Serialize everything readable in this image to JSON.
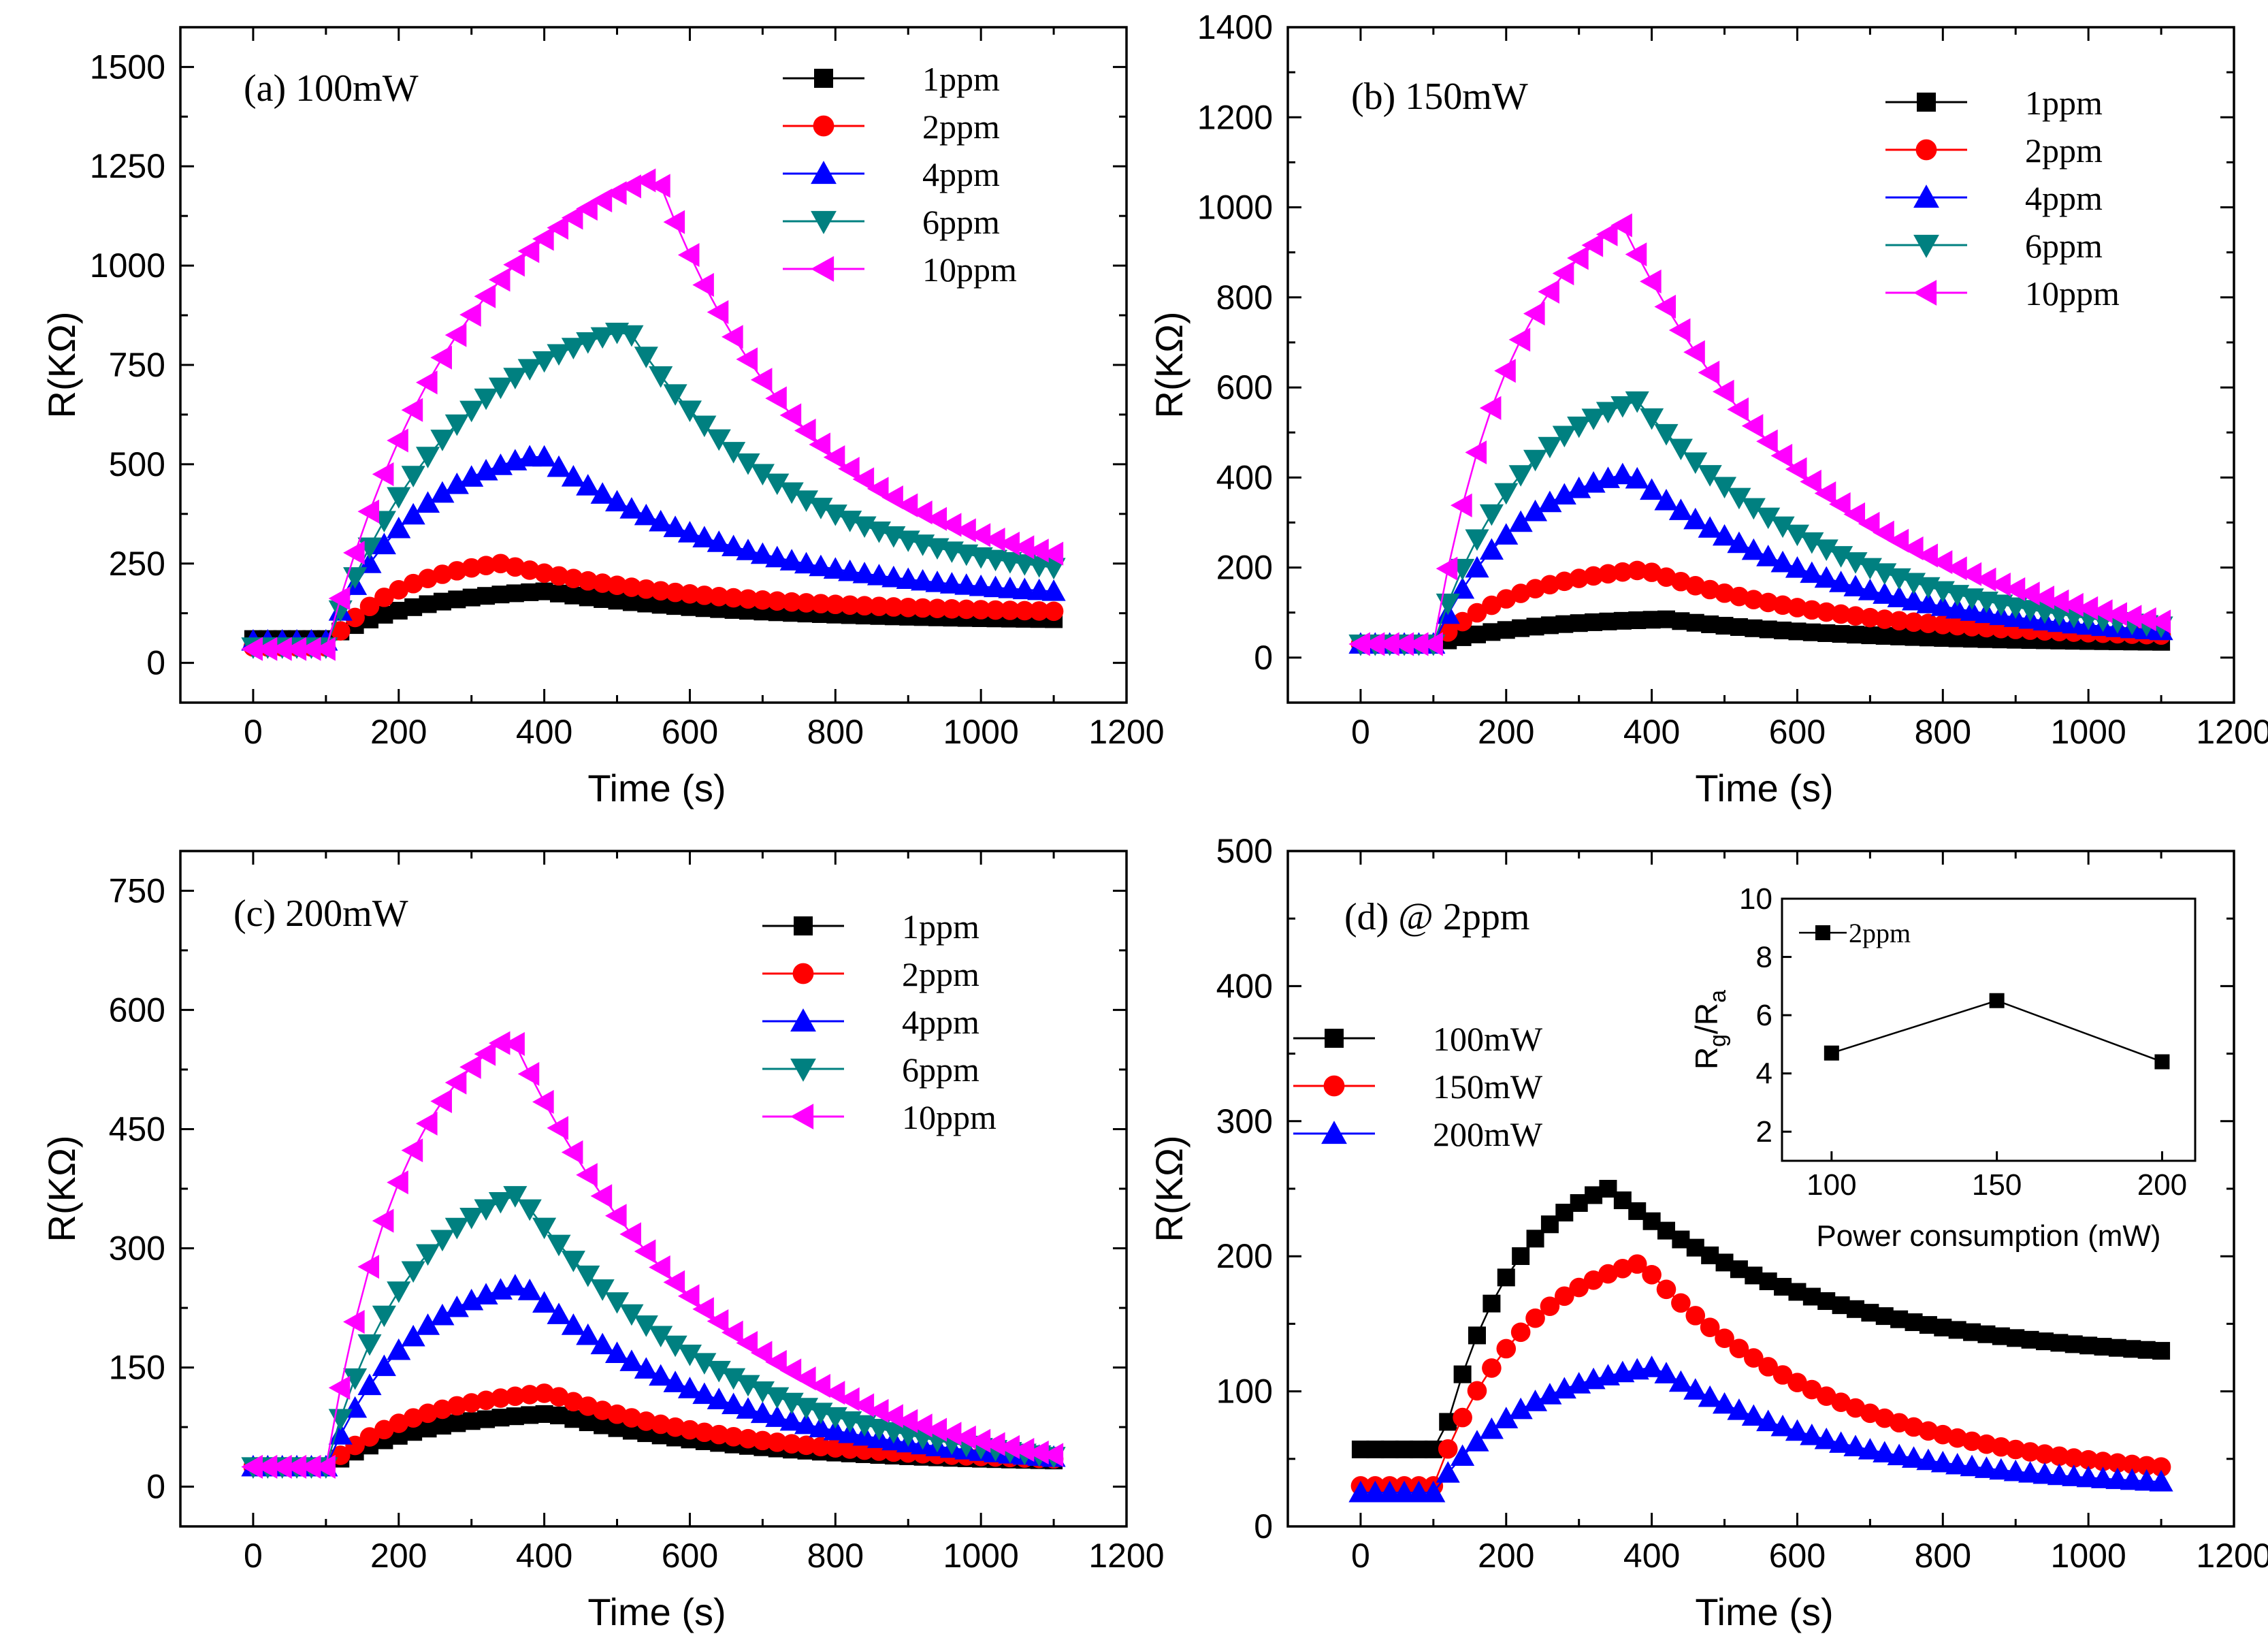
{
  "figure": {
    "caption": ""
  },
  "chart_data": [
    {
      "type": "scatter",
      "title": "(a) 100mW",
      "xlabel": "Time (s)",
      "ylabel": "R(KΩ)",
      "xlim": [
        -100,
        1200
      ],
      "ylim": [
        -100,
        1600
      ],
      "xticks": [
        "0",
        "200",
        "400",
        "600",
        "800",
        "1000",
        "1200"
      ],
      "yticks": [
        "0",
        "250",
        "500",
        "750",
        "1000",
        "1250",
        "1500"
      ],
      "series": [
        {
          "name": "1ppm",
          "color": "#000000",
          "marker": "square",
          "x": [
            0,
            100,
            400,
            1100
          ],
          "y": [
            60,
            60,
            180,
            110
          ]
        },
        {
          "name": "2ppm",
          "color": "#ff0000",
          "marker": "circle",
          "x": [
            0,
            100,
            340,
            1100
          ],
          "y": [
            40,
            40,
            250,
            130
          ]
        },
        {
          "name": "4ppm",
          "color": "#0000ff",
          "marker": "triangle-up",
          "x": [
            0,
            100,
            395,
            1100
          ],
          "y": [
            55,
            55,
            525,
            180
          ]
        },
        {
          "name": "6ppm",
          "color": "#008080",
          "marker": "triangle-down",
          "x": [
            0,
            100,
            515,
            1100
          ],
          "y": [
            40,
            40,
            840,
            240
          ]
        },
        {
          "name": "10ppm",
          "color": "#ff00ff",
          "marker": "triangle-left",
          "x": [
            0,
            100,
            555,
            1100
          ],
          "y": [
            35,
            35,
            1225,
            275
          ]
        }
      ]
    },
    {
      "type": "scatter",
      "title": "(b) 150mW",
      "xlabel": "Time (s)",
      "ylabel": "R(KΩ)",
      "xlim": [
        -100,
        1200
      ],
      "ylim": [
        -100,
        1400
      ],
      "xticks": [
        "0",
        "200",
        "400",
        "600",
        "800",
        "1000",
        "1200"
      ],
      "yticks": [
        "0",
        "200",
        "400",
        "600",
        "800",
        "1000",
        "1200",
        "1400"
      ],
      "series": [
        {
          "name": "1ppm",
          "color": "#000000",
          "marker": "square",
          "x": [
            0,
            100,
            420,
            1100
          ],
          "y": [
            30,
            30,
            85,
            35
          ]
        },
        {
          "name": "2ppm",
          "color": "#ff0000",
          "marker": "circle",
          "x": [
            0,
            100,
            390,
            1100
          ],
          "y": [
            30,
            30,
            195,
            50
          ]
        },
        {
          "name": "4ppm",
          "color": "#0000ff",
          "marker": "triangle-up",
          "x": [
            0,
            100,
            370,
            1100
          ],
          "y": [
            30,
            30,
            410,
            60
          ]
        },
        {
          "name": "6ppm",
          "color": "#008080",
          "marker": "triangle-down",
          "x": [
            0,
            100,
            380,
            1100
          ],
          "y": [
            30,
            30,
            570,
            70
          ]
        },
        {
          "name": "10ppm",
          "color": "#ff00ff",
          "marker": "triangle-left",
          "x": [
            0,
            100,
            360,
            1100
          ],
          "y": [
            30,
            30,
            960,
            80
          ]
        }
      ]
    },
    {
      "type": "scatter",
      "title": "(c) 200mW",
      "xlabel": "Time (s)",
      "ylabel": "R(KΩ)",
      "xlim": [
        -100,
        1200
      ],
      "ylim": [
        -50,
        800
      ],
      "xticks": [
        "0",
        "200",
        "400",
        "600",
        "800",
        "1000",
        "1200"
      ],
      "yticks": [
        "0",
        "150",
        "300",
        "450",
        "600",
        "750"
      ],
      "series": [
        {
          "name": "1ppm",
          "color": "#000000",
          "marker": "square",
          "x": [
            0,
            100,
            410,
            1100
          ],
          "y": [
            25,
            25,
            92,
            33
          ]
        },
        {
          "name": "2ppm",
          "color": "#ff0000",
          "marker": "circle",
          "x": [
            0,
            100,
            405,
            1100
          ],
          "y": [
            25,
            25,
            118,
            35
          ]
        },
        {
          "name": "4ppm",
          "color": "#0000ff",
          "marker": "triangle-up",
          "x": [
            0,
            100,
            370,
            1100
          ],
          "y": [
            25,
            25,
            255,
            37
          ]
        },
        {
          "name": "6ppm",
          "color": "#008080",
          "marker": "triangle-down",
          "x": [
            0,
            100,
            365,
            1100
          ],
          "y": [
            25,
            25,
            368,
            38
          ]
        },
        {
          "name": "10ppm",
          "color": "#ff00ff",
          "marker": "triangle-left",
          "x": [
            0,
            100,
            355,
            1100
          ],
          "y": [
            25,
            25,
            567,
            40
          ]
        }
      ]
    },
    {
      "type": "scatter",
      "title": "(d)  @ 2ppm",
      "xlabel": "Time (s)",
      "ylabel": "R(KΩ)",
      "xlim": [
        -100,
        1200
      ],
      "ylim": [
        0,
        500
      ],
      "xticks": [
        "0",
        "200",
        "400",
        "600",
        "800",
        "1000",
        "1200"
      ],
      "yticks": [
        "0",
        "100",
        "200",
        "300",
        "400",
        "500"
      ],
      "series": [
        {
          "name": "100mW",
          "color": "#000000",
          "marker": "square",
          "x": [
            0,
            110,
            340,
            1100
          ],
          "y": [
            57,
            57,
            250,
            130
          ]
        },
        {
          "name": "150mW",
          "color": "#ff0000",
          "marker": "circle",
          "x": [
            0,
            100,
            385,
            1100
          ],
          "y": [
            30,
            30,
            195,
            44
          ]
        },
        {
          "name": "200mW",
          "color": "#0000ff",
          "marker": "triangle-up",
          "x": [
            0,
            100,
            405,
            1100
          ],
          "y": [
            25,
            25,
            118,
            33
          ]
        }
      ],
      "inset": {
        "type": "line",
        "xlabel": "Power consumption (mW)",
        "ylabel_main": "R",
        "ylabel_sub1": "g",
        "ylabel_slash": "/R",
        "ylabel_sub2": "a",
        "xlim": [
          85,
          210
        ],
        "ylim": [
          1,
          10
        ],
        "xticks": [
          "100",
          "150",
          "200"
        ],
        "yticks": [
          "2",
          "4",
          "6",
          "8",
          "10"
        ],
        "series": [
          {
            "name": "2ppm",
            "color": "#000000",
            "marker": "square",
            "x": [
              100,
              150,
              200
            ],
            "y": [
              4.7,
              6.5,
              4.4
            ]
          }
        ]
      }
    }
  ]
}
